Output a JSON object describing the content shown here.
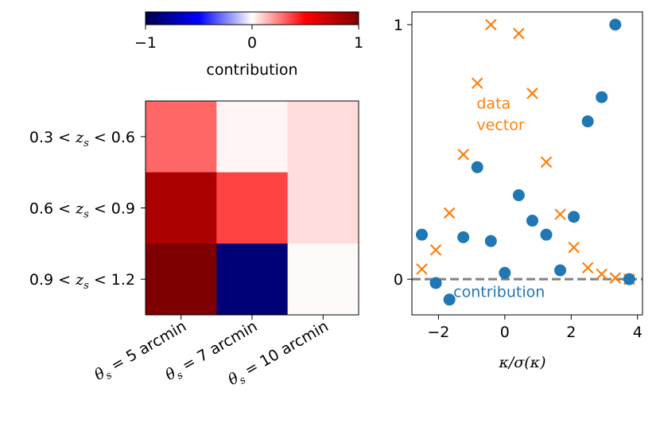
{
  "chart_data": [
    {
      "type": "heatmap",
      "colormap": "seismic",
      "rows": [
        "0.3 < z_s < 0.6",
        "0.6 < z_s < 0.9",
        "0.9 < z_s < 1.2"
      ],
      "row_labels": [
        {
          "a": "0.3 <",
          "v": "z",
          "s": "s",
          "b": "< 0.6"
        },
        {
          "a": "0.6 <",
          "v": "z",
          "s": "s",
          "b": "< 0.9"
        },
        {
          "a": "0.9 <",
          "v": "z",
          "s": "s",
          "b": "< 1.2"
        }
      ],
      "columns": [
        "θ_s = 5 arcmin",
        "θ_s = 7 arcmin",
        "θ_s = 10 arcmin"
      ],
      "column_labels": [
        {
          "v": "θ",
          "s": "s",
          "eq": "= 5",
          "u": "arcmin"
        },
        {
          "v": "θ",
          "s": "s",
          "eq": "= 7",
          "u": "arcmin"
        },
        {
          "v": "θ",
          "s": "s",
          "eq": "= 10",
          "u": "arcmin"
        }
      ],
      "values": [
        [
          0.3,
          0.02,
          0.07
        ],
        [
          0.82,
          0.37,
          0.07
        ],
        [
          1.0,
          -0.88,
          0.01
        ]
      ],
      "colorbar": {
        "label": "contribution",
        "range": [
          -1,
          1
        ],
        "ticks": [
          -1,
          0,
          1
        ],
        "tick_labels": [
          "−1",
          "0",
          "1"
        ]
      }
    },
    {
      "type": "scatter",
      "xlabel": "κ/σ(κ)",
      "xlim": [
        -2.8,
        4.15
      ],
      "ylim": [
        -0.14,
        1.05
      ],
      "xticks": [
        -2,
        0,
        2,
        4
      ],
      "xtick_labels": [
        "−2",
        "0",
        "2",
        "4"
      ],
      "yticks": [
        0,
        1
      ],
      "ytick_labels": [
        "0",
        "1"
      ],
      "reference_line": {
        "y": 0,
        "style": "dashed",
        "color": "#808080"
      },
      "series": [
        {
          "name": "contribution",
          "marker": "circle",
          "color": "#1f77b4",
          "label_position": {
            "x": -1.55,
            "y": -0.07
          },
          "x": [
            -2.5,
            -2.08,
            -1.67,
            -1.25,
            -0.83,
            -0.42,
            0.0,
            0.42,
            0.83,
            1.25,
            1.67,
            2.08,
            2.5,
            2.92,
            3.33,
            3.75
          ],
          "y": [
            0.175,
            -0.015,
            -0.08,
            0.165,
            0.44,
            0.15,
            0.025,
            0.33,
            0.23,
            0.175,
            0.035,
            0.245,
            0.62,
            0.715,
            1.0,
            0.0
          ]
        },
        {
          "name": "data vector",
          "name_lines": [
            "data",
            "vector"
          ],
          "marker": "x",
          "color": "#ff7f0e",
          "label_position": {
            "x": -0.85,
            "y": 0.67
          },
          "x": [
            -2.5,
            -2.08,
            -1.67,
            -1.25,
            -0.83,
            -0.42,
            0.42,
            0.83,
            1.25,
            1.67,
            2.08,
            2.5,
            2.92,
            3.33,
            3.75
          ],
          "y": [
            0.04,
            0.115,
            0.26,
            0.49,
            0.77,
            1.0,
            0.965,
            0.73,
            0.46,
            0.255,
            0.125,
            0.045,
            0.02,
            0.005,
            0.0
          ]
        }
      ]
    }
  ]
}
